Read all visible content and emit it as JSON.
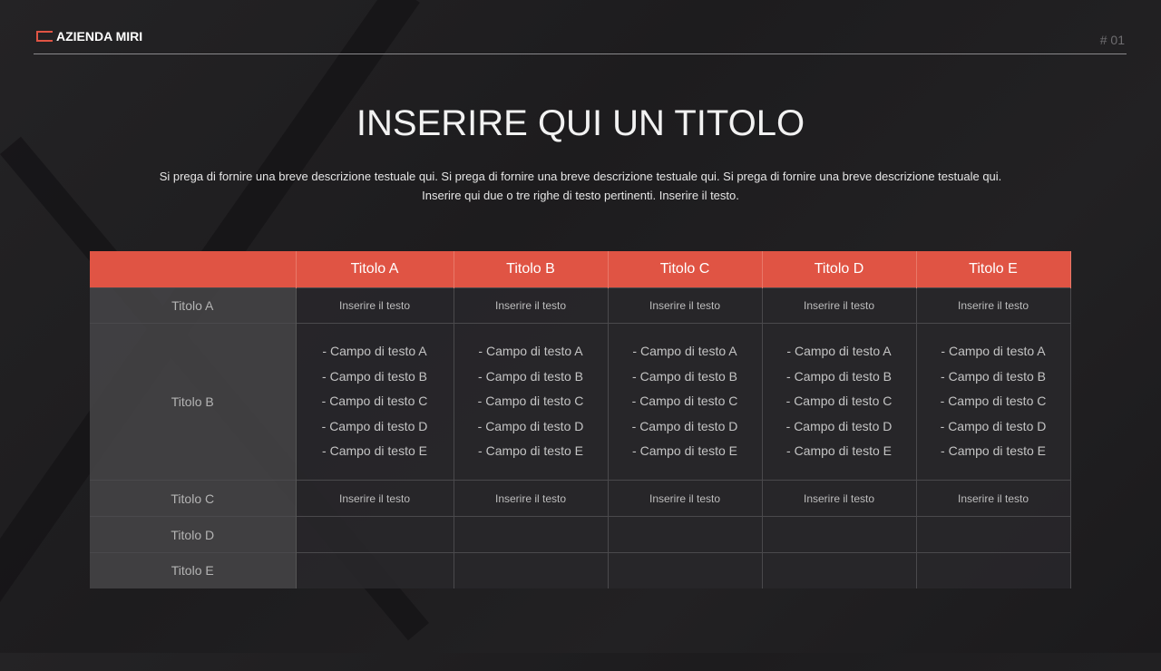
{
  "header": {
    "brand": "AZIENDA MIRI",
    "page_number": "# 01"
  },
  "title": "INSERIRE QUI UN TITOLO",
  "description": [
    "Si prega di fornire una breve descrizione testuale qui. Si prega di fornire una breve descrizione testuale qui. Si prega di fornire una breve descrizione testuale qui.",
    "Inserire qui due o tre righe di testo pertinenti. Inserire il testo."
  ],
  "colors": {
    "accent": "#e05444",
    "background": "#1f1e20"
  },
  "table": {
    "columns": [
      "",
      "Titolo A",
      "Titolo B",
      "Titolo C",
      "Titolo D",
      "Titolo E"
    ],
    "rows": [
      {
        "label": "Titolo A",
        "cells": [
          "Inserire il testo",
          "Inserire il testo",
          "Inserire il testo",
          "Inserire il testo",
          "Inserire il testo"
        ]
      },
      {
        "label": "Titolo B",
        "list": [
          "- Campo di testo A",
          "- Campo di testo B",
          "- Campo di testo C",
          "- Campo di testo D",
          "- Campo di testo E"
        ]
      },
      {
        "label": "Titolo C",
        "cells": [
          "Inserire il testo",
          "Inserire il testo",
          "Inserire il testo",
          "Inserire il testo",
          "Inserire il testo"
        ]
      },
      {
        "label": "Titolo D",
        "cells": [
          "",
          "",
          "",
          "",
          ""
        ]
      },
      {
        "label": "Titolo E",
        "cells": [
          "",
          "",
          "",
          "",
          ""
        ]
      }
    ]
  }
}
